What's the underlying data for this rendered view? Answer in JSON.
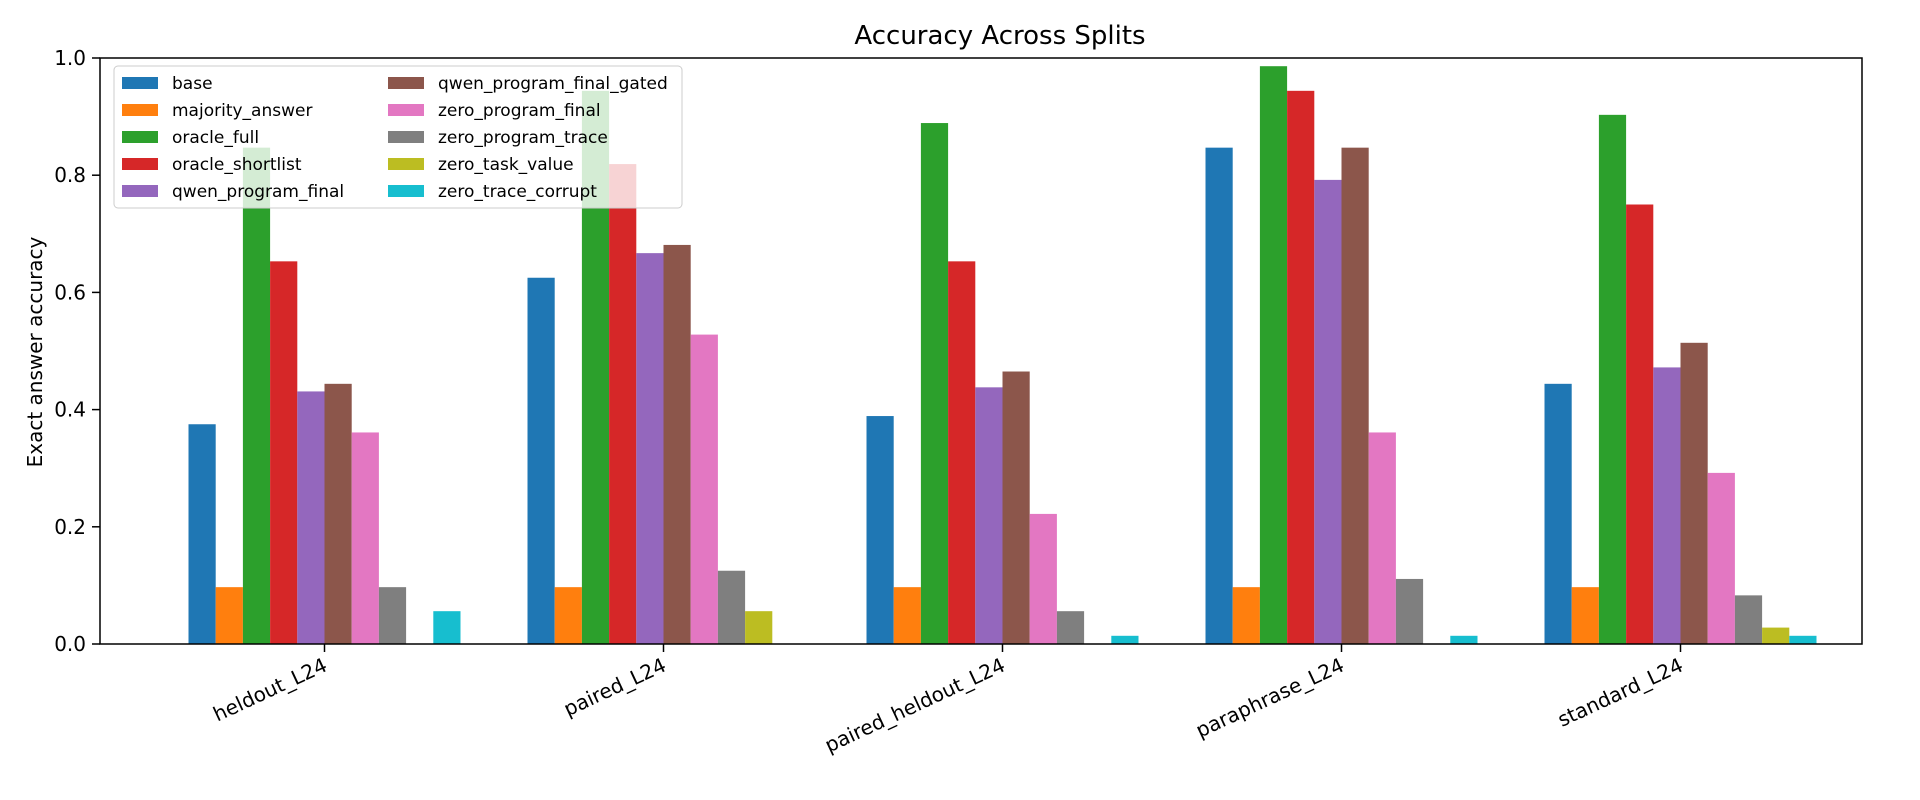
{
  "chart_data": {
    "type": "bar",
    "title": "Accuracy Across Splits",
    "xlabel": "",
    "ylabel": "Exact answer accuracy",
    "ylim": [
      0,
      1.0
    ],
    "yticks": [
      "0.0",
      "0.2",
      "0.4",
      "0.6",
      "0.8",
      "1.0"
    ],
    "grid": false,
    "legend_position": "top-left",
    "categories": [
      "heldout_L24",
      "paired_L24",
      "paired_heldout_L24",
      "paraphrase_L24",
      "standard_L24"
    ],
    "series": [
      {
        "name": "base",
        "color": "#1f77b4",
        "values": [
          0.375,
          0.625,
          0.389,
          0.847,
          0.444
        ]
      },
      {
        "name": "majority_answer",
        "color": "#ff7f0e",
        "values": [
          0.097,
          0.097,
          0.097,
          0.097,
          0.097
        ]
      },
      {
        "name": "oracle_full",
        "color": "#2ca02c",
        "values": [
          0.847,
          0.944,
          0.889,
          0.986,
          0.903
        ]
      },
      {
        "name": "oracle_shortlist",
        "color": "#d62728",
        "values": [
          0.653,
          0.819,
          0.653,
          0.944,
          0.75
        ]
      },
      {
        "name": "qwen_program_final",
        "color": "#9467bd",
        "values": [
          0.431,
          0.667,
          0.438,
          0.792,
          0.472
        ]
      },
      {
        "name": "qwen_program_final_gated",
        "color": "#8c564b",
        "values": [
          0.444,
          0.681,
          0.465,
          0.847,
          0.514
        ]
      },
      {
        "name": "zero_program_final",
        "color": "#e377c2",
        "values": [
          0.361,
          0.528,
          0.222,
          0.361,
          0.292
        ]
      },
      {
        "name": "zero_program_trace",
        "color": "#7f7f7f",
        "values": [
          0.097,
          0.125,
          0.056,
          0.111,
          0.083
        ]
      },
      {
        "name": "zero_task_value",
        "color": "#bcbd22",
        "values": [
          0.0,
          0.056,
          0.0,
          0.0,
          0.028
        ]
      },
      {
        "name": "zero_trace_corrupt",
        "color": "#17becf",
        "values": [
          0.056,
          0.0,
          0.014,
          0.014,
          0.014
        ]
      }
    ]
  }
}
